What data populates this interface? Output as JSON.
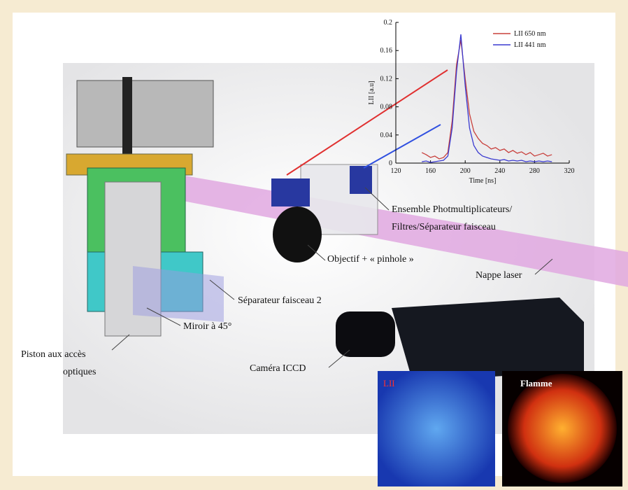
{
  "labels": {
    "photomultipliers": [
      "Ensemble Photmultiplicateurs/",
      "Filtres/Séparateur faisceau"
    ],
    "objective": "Objectif + « pinhole »",
    "laser_sheet": "Nappe laser",
    "splitter_2": "Séparateur faisceau 2",
    "mirror": "Miroir à 45°",
    "piston": [
      "Piston aux accès",
      "optiques"
    ],
    "camera": "Caméra ICCD"
  },
  "images": {
    "lii": "LII",
    "flame": "Flamme"
  },
  "chart_data": {
    "type": "line",
    "y_label": "LII [a.u]",
    "x_label": "Time [ns]",
    "x": [
      150,
      155,
      160,
      165,
      170,
      175,
      180,
      185,
      190,
      195,
      200,
      205,
      210,
      215,
      220,
      225,
      230,
      235,
      240,
      245,
      250,
      255,
      260,
      265,
      270,
      275,
      280,
      285,
      290,
      295,
      300
    ],
    "series": [
      {
        "name": "LII 650 nm",
        "color": "#c8403c",
        "values": [
          0.015,
          0.012,
          0.008,
          0.01,
          0.006,
          0.008,
          0.015,
          0.06,
          0.14,
          0.175,
          0.12,
          0.07,
          0.045,
          0.035,
          0.028,
          0.025,
          0.02,
          0.022,
          0.018,
          0.02,
          0.015,
          0.018,
          0.014,
          0.016,
          0.012,
          0.015,
          0.01,
          0.012,
          0.014,
          0.01,
          0.012
        ]
      },
      {
        "name": "LII 441 nm",
        "color": "#3a3ad0",
        "values": [
          0.002,
          0.003,
          0.001,
          0.002,
          0.003,
          0.004,
          0.01,
          0.05,
          0.13,
          0.183,
          0.11,
          0.05,
          0.025,
          0.015,
          0.01,
          0.008,
          0.006,
          0.005,
          0.004,
          0.005,
          0.003,
          0.004,
          0.003,
          0.004,
          0.002,
          0.003,
          0.002,
          0.003,
          0.002,
          0.003,
          0.002
        ]
      }
    ],
    "xlim": [
      120,
      320
    ],
    "xticks": [
      120,
      160,
      200,
      240,
      280,
      320
    ],
    "ylim": [
      0,
      0.2
    ],
    "yticks": [
      0,
      0.04,
      0.08,
      0.12,
      0.16,
      0.2
    ]
  }
}
